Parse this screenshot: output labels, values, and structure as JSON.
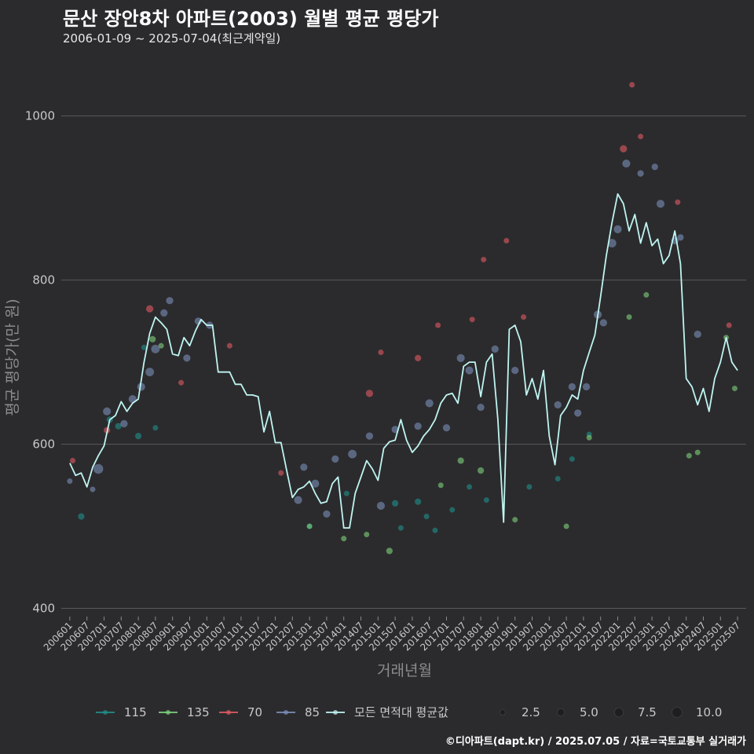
{
  "title": "문산 장안8차 아파트(2003) 월별 평균 평당가",
  "subtitle": "2006-01-09 ~ 2025-07-04(최근계약일)",
  "caption": "©디아파트(dapt.kr) / 2025.07.05 / 자료=국토교통부 실거래가",
  "colors": {
    "background": "#2b2b2d",
    "grid": "#5a5a5a",
    "line": "#bff5f2",
    "s115": "#1f8f8a",
    "s135": "#7ed07a",
    "s70": "#e05a63",
    "s85": "#7c8fb8"
  },
  "chart_data": {
    "type": "line",
    "xlabel": "거래년월",
    "ylabel": "평균 평당가(만 원)",
    "ylim": [
      390,
      1060
    ],
    "yticks": [
      400,
      600,
      800,
      1000
    ],
    "xlim": [
      "2005-10",
      "2025-10"
    ],
    "xticks": [
      "200601",
      "200607",
      "200701",
      "200707",
      "200801",
      "200807",
      "200901",
      "200907",
      "201001",
      "201007",
      "201101",
      "201107",
      "201201",
      "201207",
      "201301",
      "201307",
      "201401",
      "201407",
      "201501",
      "201507",
      "201601",
      "201607",
      "201701",
      "201707",
      "201801",
      "201807",
      "201901",
      "201907",
      "202001",
      "202007",
      "202101",
      "202107",
      "202201",
      "202207",
      "202301",
      "202307",
      "202401",
      "202407",
      "202501",
      "202507"
    ],
    "line_series": {
      "name": "모든 면적대 평균값",
      "points": [
        [
          "2006-01",
          577
        ],
        [
          "2006-03",
          562
        ],
        [
          "2006-05",
          565
        ],
        [
          "2006-07",
          548
        ],
        [
          "2006-09",
          572
        ],
        [
          "2006-11",
          586
        ],
        [
          "2007-01",
          598
        ],
        [
          "2007-03",
          630
        ],
        [
          "2007-05",
          635
        ],
        [
          "2007-07",
          652
        ],
        [
          "2007-09",
          640
        ],
        [
          "2007-11",
          650
        ],
        [
          "2008-01",
          655
        ],
        [
          "2008-03",
          700
        ],
        [
          "2008-05",
          735
        ],
        [
          "2008-07",
          755
        ],
        [
          "2008-09",
          748
        ],
        [
          "2008-11",
          740
        ],
        [
          "2009-01",
          710
        ],
        [
          "2009-03",
          708
        ],
        [
          "2009-05",
          730
        ],
        [
          "2009-07",
          720
        ],
        [
          "2009-09",
          738
        ],
        [
          "2009-11",
          752
        ],
        [
          "2010-01",
          745
        ],
        [
          "2010-03",
          745
        ],
        [
          "2010-05",
          688
        ],
        [
          "2010-07",
          688
        ],
        [
          "2010-09",
          688
        ],
        [
          "2010-11",
          673
        ],
        [
          "2011-01",
          673
        ],
        [
          "2011-03",
          660
        ],
        [
          "2011-05",
          660
        ],
        [
          "2011-07",
          658
        ],
        [
          "2011-09",
          615
        ],
        [
          "2011-11",
          640
        ],
        [
          "2012-01",
          602
        ],
        [
          "2012-03",
          602
        ],
        [
          "2012-05",
          568
        ],
        [
          "2012-07",
          535
        ],
        [
          "2012-09",
          545
        ],
        [
          "2012-11",
          548
        ],
        [
          "2013-01",
          555
        ],
        [
          "2013-03",
          540
        ],
        [
          "2013-05",
          528
        ],
        [
          "2013-07",
          530
        ],
        [
          "2013-09",
          552
        ],
        [
          "2013-11",
          560
        ],
        [
          "2014-01",
          498
        ],
        [
          "2014-03",
          498
        ],
        [
          "2014-05",
          540
        ],
        [
          "2014-07",
          560
        ],
        [
          "2014-09",
          580
        ],
        [
          "2014-11",
          570
        ],
        [
          "2015-01",
          556
        ],
        [
          "2015-03",
          595
        ],
        [
          "2015-05",
          603
        ],
        [
          "2015-07",
          605
        ],
        [
          "2015-09",
          630
        ],
        [
          "2015-11",
          605
        ],
        [
          "2016-01",
          590
        ],
        [
          "2016-03",
          598
        ],
        [
          "2016-05",
          610
        ],
        [
          "2016-07",
          618
        ],
        [
          "2016-09",
          630
        ],
        [
          "2016-11",
          650
        ],
        [
          "2017-01",
          660
        ],
        [
          "2017-03",
          662
        ],
        [
          "2017-05",
          650
        ],
        [
          "2017-07",
          695
        ],
        [
          "2017-09",
          700
        ],
        [
          "2017-11",
          700
        ],
        [
          "2018-01",
          658
        ],
        [
          "2018-03",
          700
        ],
        [
          "2018-05",
          710
        ],
        [
          "2018-07",
          630
        ],
        [
          "2018-09",
          505
        ],
        [
          "2018-11",
          740
        ],
        [
          "2019-01",
          745
        ],
        [
          "2019-03",
          725
        ],
        [
          "2019-05",
          660
        ],
        [
          "2019-07",
          680
        ],
        [
          "2019-09",
          655
        ],
        [
          "2019-11",
          690
        ],
        [
          "2020-01",
          610
        ],
        [
          "2020-03",
          575
        ],
        [
          "2020-05",
          635
        ],
        [
          "2020-07",
          645
        ],
        [
          "2020-09",
          660
        ],
        [
          "2020-11",
          655
        ],
        [
          "2021-01",
          690
        ],
        [
          "2021-03",
          712
        ],
        [
          "2021-05",
          733
        ],
        [
          "2021-07",
          780
        ],
        [
          "2021-09",
          830
        ],
        [
          "2021-11",
          870
        ],
        [
          "2022-01",
          905
        ],
        [
          "2022-03",
          893
        ],
        [
          "2022-05",
          860
        ],
        [
          "2022-07",
          880
        ],
        [
          "2022-09",
          845
        ],
        [
          "2022-11",
          870
        ],
        [
          "2023-01",
          842
        ],
        [
          "2023-03",
          850
        ],
        [
          "2023-05",
          820
        ],
        [
          "2023-07",
          830
        ],
        [
          "2023-09",
          860
        ],
        [
          "2023-11",
          820
        ],
        [
          "2024-01",
          680
        ],
        [
          "2024-03",
          670
        ],
        [
          "2024-05",
          648
        ],
        [
          "2024-07",
          668
        ],
        [
          "2024-09",
          640
        ],
        [
          "2024-11",
          680
        ],
        [
          "2025-01",
          700
        ],
        [
          "2025-03",
          730
        ],
        [
          "2025-05",
          700
        ],
        [
          "2025-07",
          690
        ]
      ]
    },
    "scatter_series": [
      {
        "name": "115",
        "color_key": "s115",
        "points": [
          [
            "2006-05",
            512,
            3
          ],
          [
            "2007-03",
            630,
            3
          ],
          [
            "2007-06",
            622,
            3
          ],
          [
            "2008-01",
            610,
            3
          ],
          [
            "2008-03",
            718,
            2
          ],
          [
            "2008-07",
            620,
            2
          ],
          [
            "2013-01",
            500,
            2
          ],
          [
            "2014-02",
            540,
            2
          ],
          [
            "2015-07",
            528,
            3
          ],
          [
            "2015-09",
            498,
            2
          ],
          [
            "2016-03",
            530,
            3
          ],
          [
            "2016-06",
            512,
            2
          ],
          [
            "2016-09",
            495,
            2
          ],
          [
            "2017-03",
            520,
            2
          ],
          [
            "2017-09",
            548,
            2
          ],
          [
            "2018-03",
            532,
            2
          ],
          [
            "2019-06",
            548,
            2
          ],
          [
            "2020-04",
            558,
            2
          ],
          [
            "2020-09",
            582,
            2
          ],
          [
            "2021-03",
            612,
            2
          ]
        ]
      },
      {
        "name": "135",
        "color_key": "s135",
        "points": [
          [
            "2008-06",
            728,
            3
          ],
          [
            "2008-09",
            720,
            2
          ],
          [
            "2013-01",
            500,
            2
          ],
          [
            "2014-01",
            485,
            2
          ],
          [
            "2014-09",
            490,
            2
          ],
          [
            "2015-05",
            470,
            3
          ],
          [
            "2016-11",
            550,
            2
          ],
          [
            "2017-06",
            580,
            3
          ],
          [
            "2018-01",
            568,
            3
          ],
          [
            "2019-01",
            508,
            2
          ],
          [
            "2020-07",
            500,
            2
          ],
          [
            "2021-03",
            608,
            2
          ],
          [
            "2022-05",
            755,
            2
          ],
          [
            "2022-11",
            782,
            2
          ],
          [
            "2024-02",
            586,
            2
          ],
          [
            "2024-05",
            590,
            2
          ],
          [
            "2025-03",
            730,
            2
          ],
          [
            "2025-06",
            668,
            2
          ]
        ]
      },
      {
        "name": "70",
        "color_key": "s70",
        "points": [
          [
            "2006-02",
            580,
            2
          ],
          [
            "2007-02",
            617,
            3
          ],
          [
            "2008-05",
            765,
            4
          ],
          [
            "2009-04",
            675,
            2
          ],
          [
            "2010-09",
            720,
            2
          ],
          [
            "2012-03",
            565,
            2
          ],
          [
            "2014-10",
            662,
            4
          ],
          [
            "2015-02",
            712,
            2
          ],
          [
            "2016-03",
            705,
            3
          ],
          [
            "2016-10",
            745,
            2
          ],
          [
            "2017-10",
            752,
            2
          ],
          [
            "2018-02",
            825,
            2
          ],
          [
            "2018-10",
            848,
            2
          ],
          [
            "2019-04",
            755,
            2
          ],
          [
            "2022-03",
            960,
            4
          ],
          [
            "2022-06",
            1038,
            2
          ],
          [
            "2022-09",
            975,
            2
          ],
          [
            "2023-10",
            895,
            2
          ],
          [
            "2025-04",
            745,
            2
          ]
        ]
      },
      {
        "name": "85",
        "color_key": "s85",
        "points": [
          [
            "2006-01",
            555,
            2
          ],
          [
            "2006-09",
            545,
            2
          ],
          [
            "2006-11",
            570,
            8
          ],
          [
            "2007-02",
            640,
            5
          ],
          [
            "2007-08",
            625,
            4
          ],
          [
            "2007-11",
            655,
            5
          ],
          [
            "2008-02",
            670,
            5
          ],
          [
            "2008-05",
            688,
            6
          ],
          [
            "2008-07",
            716,
            6
          ],
          [
            "2008-10",
            760,
            4
          ],
          [
            "2008-12",
            775,
            4
          ],
          [
            "2009-06",
            705,
            4
          ],
          [
            "2009-10",
            750,
            4
          ],
          [
            "2010-02",
            745,
            4
          ],
          [
            "2012-09",
            532,
            5
          ],
          [
            "2012-11",
            572,
            4
          ],
          [
            "2013-03",
            552,
            5
          ],
          [
            "2013-07",
            515,
            4
          ],
          [
            "2013-10",
            582,
            4
          ],
          [
            "2014-04",
            588,
            6
          ],
          [
            "2014-10",
            610,
            4
          ],
          [
            "2015-02",
            525,
            5
          ],
          [
            "2015-07",
            618,
            4
          ],
          [
            "2016-03",
            622,
            4
          ],
          [
            "2016-07",
            650,
            5
          ],
          [
            "2017-01",
            620,
            4
          ],
          [
            "2017-06",
            705,
            5
          ],
          [
            "2017-09",
            690,
            5
          ],
          [
            "2018-01",
            645,
            4
          ],
          [
            "2018-06",
            716,
            4
          ],
          [
            "2019-01",
            690,
            4
          ],
          [
            "2020-04",
            648,
            4
          ],
          [
            "2020-09",
            670,
            4
          ],
          [
            "2020-11",
            638,
            4
          ],
          [
            "2021-02",
            670,
            4
          ],
          [
            "2021-06",
            758,
            5
          ],
          [
            "2021-08",
            748,
            4
          ],
          [
            "2021-11",
            845,
            6
          ],
          [
            "2022-01",
            862,
            5
          ],
          [
            "2022-04",
            942,
            5
          ],
          [
            "2022-09",
            930,
            3
          ],
          [
            "2023-02",
            938,
            3
          ],
          [
            "2023-04",
            893,
            5
          ],
          [
            "2023-09",
            848,
            4
          ],
          [
            "2023-11",
            852,
            3
          ],
          [
            "2024-05",
            734,
            4
          ]
        ]
      }
    ],
    "legend": {
      "color_labels": [
        "115",
        "135",
        "70",
        "85",
        "모든 면적대 평균값"
      ],
      "size_labels": [
        "2.5",
        "5.0",
        "7.5",
        "10.0"
      ]
    }
  }
}
